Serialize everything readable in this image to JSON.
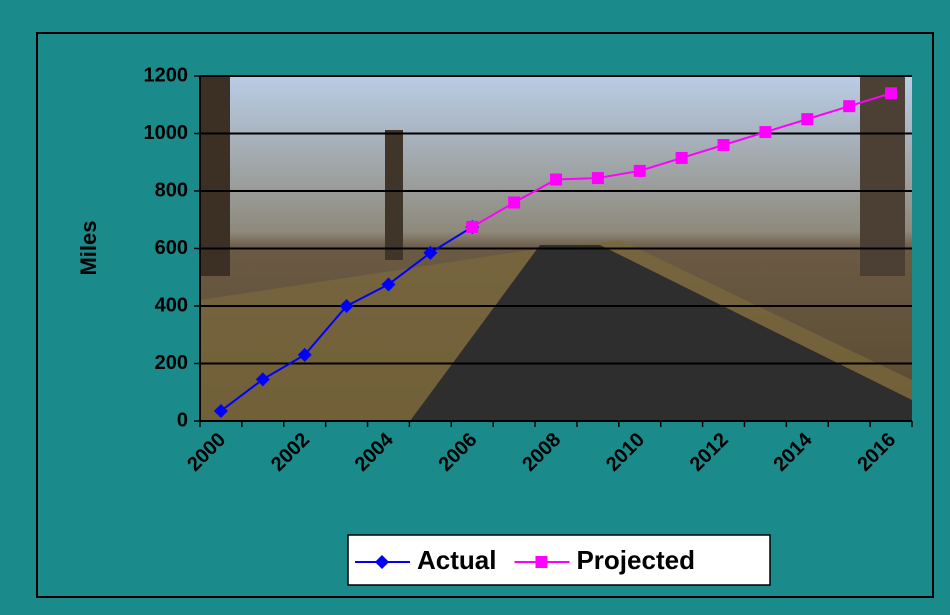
{
  "chart_data": {
    "type": "line",
    "y_label": "Miles",
    "categories": [
      "2000",
      null,
      "2002",
      null,
      "2004",
      null,
      "2006",
      null,
      "2008",
      null,
      "2010",
      null,
      "2012",
      null,
      "2014",
      null,
      "2016"
    ],
    "series": [
      {
        "name": "Actual",
        "color": "#0000ff",
        "marker": "diamond",
        "values": [
          35,
          145,
          230,
          400,
          475,
          585,
          675,
          null,
          null,
          null,
          null,
          null,
          null,
          null,
          null,
          null,
          null
        ]
      },
      {
        "name": "Projected",
        "color": "#ff00ff",
        "marker": "square",
        "values": [
          null,
          null,
          null,
          null,
          null,
          null,
          675,
          760,
          840,
          845,
          870,
          915,
          960,
          1005,
          1050,
          1095,
          1140
        ]
      }
    ],
    "ylim": [
      0,
      1200
    ],
    "yticks": [
      0,
      200,
      400,
      600,
      800,
      1000,
      1200
    ],
    "grid": true,
    "legend": "bottom"
  }
}
